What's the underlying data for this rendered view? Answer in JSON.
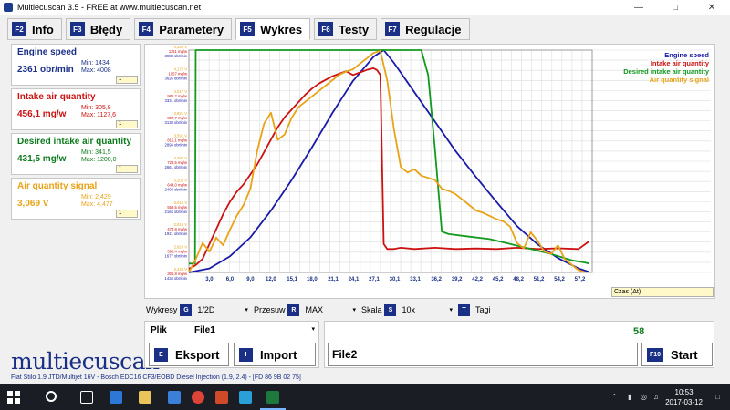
{
  "window": {
    "title": "Multiecuscan 3.5 - FREE at www.multiecuscan.net",
    "minimize_icon": "minimize-icon",
    "maximize_icon": "maximize-icon",
    "close_icon": "close-icon"
  },
  "tabs": [
    {
      "key": "F2",
      "label": "Info"
    },
    {
      "key": "F3",
      "label": "Błędy"
    },
    {
      "key": "F4",
      "label": "Parametery"
    },
    {
      "key": "F5",
      "label": "Wykres",
      "active": true
    },
    {
      "key": "F6",
      "label": "Testy"
    },
    {
      "key": "F7",
      "label": "Regulacje"
    }
  ],
  "parameters": [
    {
      "name": "Engine speed",
      "value": "2361 obr/min",
      "min": "Min: 1434",
      "max": "Max: 4008",
      "select": "1",
      "color": "#1a2f86"
    },
    {
      "name": "Intake air quantity",
      "value": "456,1 mg/w",
      "min": "Min: 305,8",
      "max": "Max: 1127,6",
      "select": "1",
      "color": "#cc1111"
    },
    {
      "name": "Desired intake air quantity",
      "value": "431,5 mg/w",
      "min": "Min: 341,5",
      "max": "Max: 1200,0",
      "select": "1",
      "color": "#0c7a1c"
    },
    {
      "name": "Air quantity signal",
      "value": "3,069 V",
      "min": "Min: 2,429",
      "max": "Max: 4,477",
      "select": "1",
      "color": "#e8a317"
    }
  ],
  "logo": "multiecuscan",
  "chart_data": {
    "type": "line",
    "xlabel": "Czas (Δt)",
    "x_ticks": [
      "3,0",
      "6,0",
      "9,0",
      "12,0",
      "15,1",
      "18,0",
      "21,1",
      "24,1",
      "27,1",
      "30,1",
      "33,1",
      "36,2",
      "39,2",
      "42,2",
      "45,2",
      "48,2",
      "51,2",
      "54,2",
      "57,2"
    ],
    "xlim": [
      0,
      59
    ],
    "grid": true,
    "legend_position": "top-right",
    "y_tick_groups": [
      [
        "4,356 V",
        "1151 mg/w",
        "3988 obr/min"
      ],
      [
        "4,172 V",
        "1057 mg/w",
        "3626 obr/min"
      ],
      [
        "4,017 V",
        "982,2 mg/w",
        "3331 obr/min"
      ],
      [
        "3,821 V",
        "897,7 mg/w",
        "3138 obr/min"
      ],
      [
        "3,591 V",
        "815,1 mg/w",
        "2894 obr/min"
      ],
      [
        "3,397 V",
        "728,5 mg/w",
        "2661 obr/min"
      ],
      [
        "3,206 V",
        "644,0 mg/w",
        "2408 obr/min"
      ],
      [
        "3,015 V",
        "559,5 mg/w",
        "2164 obr/min"
      ],
      [
        "2,816 V",
        "474,8 mg/w",
        "1921 obr/min"
      ],
      [
        "2,620 V",
        "390,4 mg/w",
        "1677 obr/min"
      ],
      [
        "2,429 V",
        "305,8 mg/w",
        "1434 obr/min"
      ]
    ],
    "series": [
      {
        "name": "Engine speed",
        "color": "#1a1aa8",
        "unit": "obr/min",
        "x": [
          0,
          3,
          6,
          9,
          12,
          15,
          18,
          21,
          24,
          27,
          28.5,
          30,
          33,
          36,
          39,
          42,
          45,
          48,
          51,
          54,
          57,
          58.5
        ],
        "y": [
          1434,
          1480,
          1620,
          1840,
          2150,
          2500,
          2880,
          3280,
          3650,
          3930,
          4008,
          3860,
          3520,
          3180,
          2840,
          2540,
          2250,
          1970,
          1760,
          1600,
          1480,
          1440
        ]
      },
      {
        "name": "Intake air quantity",
        "color": "#cc1111",
        "unit": "mg/w",
        "x": [
          0,
          1,
          2,
          3,
          4,
          5,
          6,
          7,
          8,
          9,
          10,
          11,
          12,
          13,
          14,
          15,
          16,
          17,
          18,
          19,
          20,
          21,
          22,
          23,
          24,
          25,
          26,
          27,
          27.5,
          28,
          28.5,
          29,
          30,
          31,
          33,
          36,
          39,
          42,
          45,
          48,
          51,
          54,
          57,
          58.5
        ],
        "y": [
          320,
          335,
          360,
          420,
          480,
          540,
          590,
          630,
          660,
          700,
          740,
          790,
          840,
          890,
          930,
          960,
          990,
          1020,
          1045,
          1065,
          1080,
          1095,
          1105,
          1115,
          1100,
          1110,
          1120,
          1127,
          1120,
          1100,
          420,
          400,
          400,
          405,
          400,
          405,
          400,
          402,
          400,
          405,
          400,
          403,
          400,
          430
        ]
      },
      {
        "name": "Desired intake air quantity",
        "color": "#129a1e",
        "unit": "mg/w",
        "x": [
          0,
          0.9,
          1,
          1.2,
          27,
          34,
          35,
          36,
          37,
          38,
          41,
          44,
          47,
          50,
          53,
          56,
          58,
          58.5
        ],
        "y": [
          341.5,
          341.5,
          1200,
          1200,
          1200,
          1200,
          1100,
          800,
          470,
          460,
          450,
          440,
          420,
          400,
          380,
          355,
          345,
          341.5
        ]
      },
      {
        "name": "Air quantity signal",
        "color": "#e8a317",
        "unit": "V",
        "x": [
          0,
          1,
          2,
          3,
          4,
          5,
          6,
          7,
          8,
          9,
          10,
          11,
          12,
          13,
          14,
          15,
          16,
          17,
          18,
          19,
          20,
          21,
          22,
          23,
          24,
          25,
          26,
          27,
          28,
          29,
          30,
          31,
          32,
          33,
          34,
          35,
          36,
          37,
          38,
          39,
          40,
          41,
          42,
          43,
          44,
          45,
          46,
          47,
          48,
          49,
          50,
          51,
          52,
          53,
          54,
          55,
          56,
          57,
          58
        ],
        "y": [
          2.43,
          2.55,
          2.7,
          2.62,
          2.75,
          2.68,
          2.82,
          2.95,
          3.05,
          3.2,
          3.55,
          3.8,
          3.9,
          3.65,
          3.7,
          3.85,
          3.95,
          4.0,
          4.05,
          4.1,
          4.15,
          4.2,
          4.25,
          4.28,
          4.3,
          4.35,
          4.4,
          4.45,
          4.47,
          4.2,
          3.75,
          3.4,
          3.35,
          3.38,
          3.32,
          3.3,
          3.28,
          3.2,
          3.18,
          3.15,
          3.1,
          3.05,
          3.0,
          2.98,
          2.95,
          2.92,
          2.9,
          2.85,
          2.7,
          2.65,
          2.8,
          2.72,
          2.62,
          2.6,
          2.68,
          2.55,
          2.5,
          2.45,
          2.43
        ]
      }
    ]
  },
  "time_select": "Czas (Δt)",
  "controls": {
    "wykresy_label": "Wykresy",
    "wykresy_key": "G",
    "wykresy_value": "1/2D",
    "przesuw_label": "Przesuw",
    "przesuw_key": "R",
    "przesuw_value": "MAX",
    "skala_label": "Skala",
    "skala_key": "S",
    "skala_value": "10x",
    "tagi_key": "T",
    "tagi_label": "Tagi"
  },
  "file_panel": {
    "plik_label": "Plik",
    "file_value": "File1",
    "export_key": "E",
    "export_label": "Eksport",
    "import_key": "I",
    "import_label": "Import"
  },
  "record_panel": {
    "counter": "58",
    "file_value": "File2",
    "start_key": "F10",
    "start_label": "Start"
  },
  "status_bar": "Fiat Stilo 1.9 JTD/Multijet 16V - Bosch EDC16 CF3/EOBD Diesel Injection (1.9, 2.4) - [FD 86 9B 02 75]",
  "taskbar": {
    "time": "10:53",
    "date": "2017-03-12"
  }
}
